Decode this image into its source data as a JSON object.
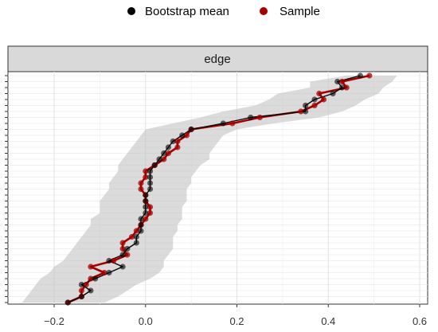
{
  "chart_data": {
    "type": "line",
    "facet_label": "edge",
    "legend": {
      "placement": "top",
      "entries": [
        {
          "label": "Bootstrap mean",
          "color": "#000000"
        },
        {
          "label": "Sample",
          "color": "#a50000"
        }
      ]
    },
    "xlim": [
      -0.3,
      0.6
    ],
    "x_ticks": [
      {
        "value": -0.2,
        "label": "−0.2"
      },
      {
        "value": 0.0,
        "label": "0.0"
      },
      {
        "value": 0.2,
        "label": "0.2"
      },
      {
        "value": 0.4,
        "label": "0.4"
      },
      {
        "value": 0.6,
        "label": "0.6"
      }
    ],
    "grid": true,
    "series": [
      {
        "name": "Bootstrap mean",
        "color": "#000000",
        "values": [
          0.47,
          0.42,
          0.43,
          0.41,
          0.37,
          0.35,
          0.35,
          0.23,
          0.17,
          0.1,
          0.08,
          0.06,
          0.05,
          0.04,
          0.03,
          0.02,
          0.01,
          0.01,
          0.01,
          0.01,
          0.0,
          0.0,
          0.0,
          0.0,
          -0.01,
          -0.01,
          -0.01,
          -0.02,
          -0.02,
          -0.04,
          -0.05,
          -0.08,
          -0.05,
          -0.08,
          -0.11,
          -0.14,
          -0.12,
          -0.14,
          -0.17
        ]
      },
      {
        "name": "Sample",
        "color": "#a50000",
        "values": [
          0.49,
          0.43,
          0.44,
          0.38,
          0.39,
          0.37,
          0.34,
          0.25,
          0.19,
          0.1,
          0.09,
          0.07,
          0.07,
          0.05,
          0.04,
          0.02,
          0.0,
          0.0,
          -0.01,
          -0.01,
          0.0,
          0.0,
          0.01,
          0.01,
          0.0,
          -0.01,
          -0.02,
          -0.03,
          -0.05,
          -0.05,
          -0.04,
          -0.07,
          -0.12,
          -0.09,
          -0.12,
          -0.13,
          -0.14,
          -0.14,
          -0.17
        ]
      }
    ],
    "band": {
      "lower": [
        0.44,
        0.36,
        0.36,
        0.29,
        0.27,
        0.24,
        0.17,
        0.12,
        0.06,
        0.0,
        -0.01,
        -0.02,
        -0.03,
        -0.04,
        -0.05,
        -0.06,
        -0.06,
        -0.07,
        -0.08,
        -0.08,
        -0.09,
        -0.1,
        -0.1,
        -0.1,
        -0.12,
        -0.12,
        -0.13,
        -0.14,
        -0.15,
        -0.16,
        -0.17,
        -0.18,
        -0.2,
        -0.21,
        -0.23,
        -0.24,
        -0.25,
        -0.26,
        -0.27
      ],
      "upper": [
        0.55,
        0.54,
        0.52,
        0.51,
        0.48,
        0.46,
        0.43,
        0.38,
        0.28,
        0.2,
        0.17,
        0.16,
        0.15,
        0.14,
        0.14,
        0.12,
        0.11,
        0.1,
        0.1,
        0.09,
        0.09,
        0.09,
        0.08,
        0.08,
        0.08,
        0.07,
        0.07,
        0.06,
        0.06,
        0.06,
        0.05,
        0.04,
        0.04,
        0.03,
        0.01,
        -0.02,
        -0.04,
        -0.06,
        -0.09
      ]
    }
  }
}
